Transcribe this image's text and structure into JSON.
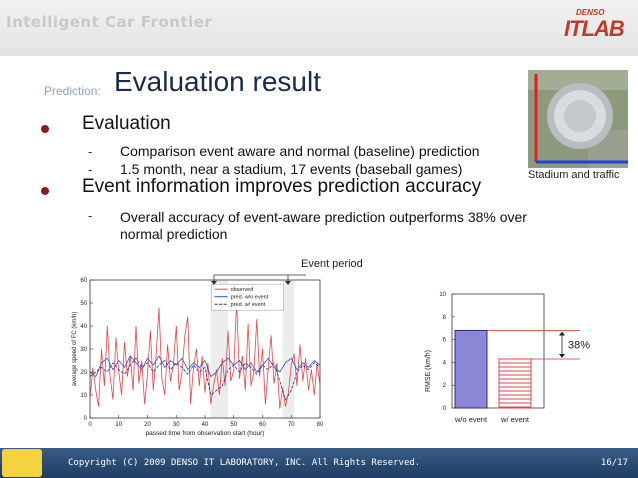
{
  "header": {
    "title": "Intelligent Car Frontier",
    "logo_small": "DENSO",
    "logo_main": "ITLAB"
  },
  "slide": {
    "prefix": "Prediction:",
    "title": "Evaluation result",
    "bullet1": "Evaluation",
    "sub1": "Comparison event aware and normal (baseline) prediction",
    "sub2": "1.5 month, near a stadium, 17 events (baseball games)",
    "bullet2": "Event information improves prediction accuracy",
    "sub3": "Overall accuracy of event-aware prediction outperforms 38% over normal prediction",
    "dash": "-",
    "photo_caption": "Stadium and traffic",
    "event_period_label": "Event period"
  },
  "footer": {
    "copyright": "Copyright (C) 2009 DENSO IT LABORATORY, INC. All Rights Reserved.",
    "page": "16/17"
  },
  "chart_data": [
    {
      "type": "line",
      "xlabel": "passed time from observation start (hour)",
      "ylabel": "average speed of FC (km/h)",
      "xlim": [
        0,
        80
      ],
      "ylim": [
        0,
        60
      ],
      "xticks": [
        0,
        10,
        20,
        30,
        40,
        50,
        60,
        70,
        80
      ],
      "yticks": [
        0,
        10,
        20,
        30,
        40,
        50,
        60
      ],
      "event_bands": [
        [
          42,
          48
        ],
        [
          67,
          71
        ]
      ],
      "series": [
        {
          "name": "observed",
          "color": "#e0474c",
          "points": [
            [
              0,
              8
            ],
            [
              1,
              22
            ],
            [
              2,
              12
            ],
            [
              3,
              5
            ],
            [
              4,
              30
            ],
            [
              5,
              14
            ],
            [
              6,
              40
            ],
            [
              7,
              18
            ],
            [
              8,
              8
            ],
            [
              9,
              35
            ],
            [
              10,
              20
            ],
            [
              11,
              10
            ],
            [
              12,
              33
            ],
            [
              13,
              18
            ],
            [
              14,
              27
            ],
            [
              15,
              12
            ],
            [
              16,
              40
            ],
            [
              17,
              15
            ],
            [
              18,
              25
            ],
            [
              19,
              6
            ],
            [
              20,
              19
            ],
            [
              21,
              38
            ],
            [
              22,
              12
            ],
            [
              23,
              27
            ],
            [
              24,
              48
            ],
            [
              25,
              17
            ],
            [
              26,
              10
            ],
            [
              27,
              32
            ],
            [
              28,
              16
            ],
            [
              29,
              23
            ],
            [
              30,
              40
            ],
            [
              31,
              12
            ],
            [
              32,
              20
            ],
            [
              33,
              36
            ],
            [
              34,
              44
            ],
            [
              35,
              6
            ],
            [
              36,
              22
            ],
            [
              37,
              30
            ],
            [
              38,
              14
            ],
            [
              39,
              27
            ],
            [
              40,
              11
            ],
            [
              41,
              24
            ],
            [
              42,
              6
            ],
            [
              43,
              14
            ],
            [
              44,
              21
            ],
            [
              45,
              10
            ],
            [
              46,
              26
            ],
            [
              47,
              14
            ],
            [
              48,
              38
            ],
            [
              49,
              16
            ],
            [
              50,
              21
            ],
            [
              51,
              51
            ],
            [
              52,
              17
            ],
            [
              53,
              27
            ],
            [
              54,
              12
            ],
            [
              55,
              41
            ],
            [
              56,
              14
            ],
            [
              57,
              20
            ],
            [
              58,
              43
            ],
            [
              59,
              18
            ],
            [
              60,
              30
            ],
            [
              61,
              6
            ],
            [
              62,
              22
            ],
            [
              63,
              36
            ],
            [
              64,
              15
            ],
            [
              65,
              24
            ],
            [
              66,
              4
            ],
            [
              67,
              13
            ],
            [
              68,
              5
            ],
            [
              69,
              11
            ],
            [
              70,
              23
            ],
            [
              71,
              28
            ],
            [
              72,
              14
            ],
            [
              73,
              32
            ],
            [
              74,
              16
            ],
            [
              75,
              26
            ],
            [
              76,
              12
            ],
            [
              77,
              21
            ],
            [
              78,
              10
            ],
            [
              79,
              24
            ],
            [
              80,
              14
            ]
          ]
        },
        {
          "name": "pred. w/o event",
          "color": "#3a4fbf",
          "points": [
            [
              0,
              20
            ],
            [
              2,
              18
            ],
            [
              4,
              24
            ],
            [
              6,
              26
            ],
            [
              8,
              21
            ],
            [
              10,
              25
            ],
            [
              12,
              22
            ],
            [
              14,
              27
            ],
            [
              16,
              24
            ],
            [
              18,
              21
            ],
            [
              20,
              26
            ],
            [
              22,
              23
            ],
            [
              24,
              27
            ],
            [
              26,
              22
            ],
            [
              28,
              25
            ],
            [
              30,
              23
            ],
            [
              32,
              26
            ],
            [
              34,
              21
            ],
            [
              36,
              24
            ],
            [
              38,
              22
            ],
            [
              40,
              25
            ],
            [
              42,
              18
            ],
            [
              44,
              20
            ],
            [
              46,
              24
            ],
            [
              48,
              26
            ],
            [
              50,
              23
            ],
            [
              52,
              25
            ],
            [
              54,
              21
            ],
            [
              56,
              24
            ],
            [
              58,
              20
            ],
            [
              60,
              23
            ],
            [
              62,
              26
            ],
            [
              64,
              22
            ],
            [
              66,
              20
            ],
            [
              68,
              24
            ],
            [
              70,
              26
            ],
            [
              72,
              21
            ],
            [
              74,
              24
            ],
            [
              76,
              22
            ],
            [
              78,
              25
            ],
            [
              80,
              23
            ]
          ]
        },
        {
          "name": "pred. w/ event",
          "color": "#2b2b8c",
          "points": [
            [
              0,
              18
            ],
            [
              2,
              20
            ],
            [
              4,
              22
            ],
            [
              6,
              20
            ],
            [
              8,
              24
            ],
            [
              10,
              21
            ],
            [
              12,
              19
            ],
            [
              14,
              23
            ],
            [
              16,
              26
            ],
            [
              18,
              22
            ],
            [
              20,
              24
            ],
            [
              22,
              20
            ],
            [
              24,
              23
            ],
            [
              26,
              25
            ],
            [
              28,
              21
            ],
            [
              30,
              24
            ],
            [
              32,
              22
            ],
            [
              34,
              19
            ],
            [
              36,
              23
            ],
            [
              38,
              20
            ],
            [
              40,
              22
            ],
            [
              42,
              10
            ],
            [
              44,
              12
            ],
            [
              46,
              14
            ],
            [
              48,
              21
            ],
            [
              50,
              23
            ],
            [
              52,
              20
            ],
            [
              54,
              24
            ],
            [
              56,
              22
            ],
            [
              58,
              19
            ],
            [
              60,
              23
            ],
            [
              62,
              21
            ],
            [
              64,
              24
            ],
            [
              66,
              16
            ],
            [
              68,
              8
            ],
            [
              70,
              12
            ],
            [
              72,
              20
            ],
            [
              74,
              23
            ],
            [
              76,
              21
            ],
            [
              78,
              24
            ],
            [
              80,
              22
            ]
          ]
        }
      ]
    },
    {
      "type": "bar",
      "ylabel": "RMSE (km/h)",
      "ylim": [
        0,
        10
      ],
      "yticks": [
        0,
        2,
        4,
        6,
        8,
        10
      ],
      "categories": [
        "w/o event",
        "w/ event"
      ],
      "values": [
        6.8,
        4.3
      ],
      "annotation": "38%"
    }
  ]
}
